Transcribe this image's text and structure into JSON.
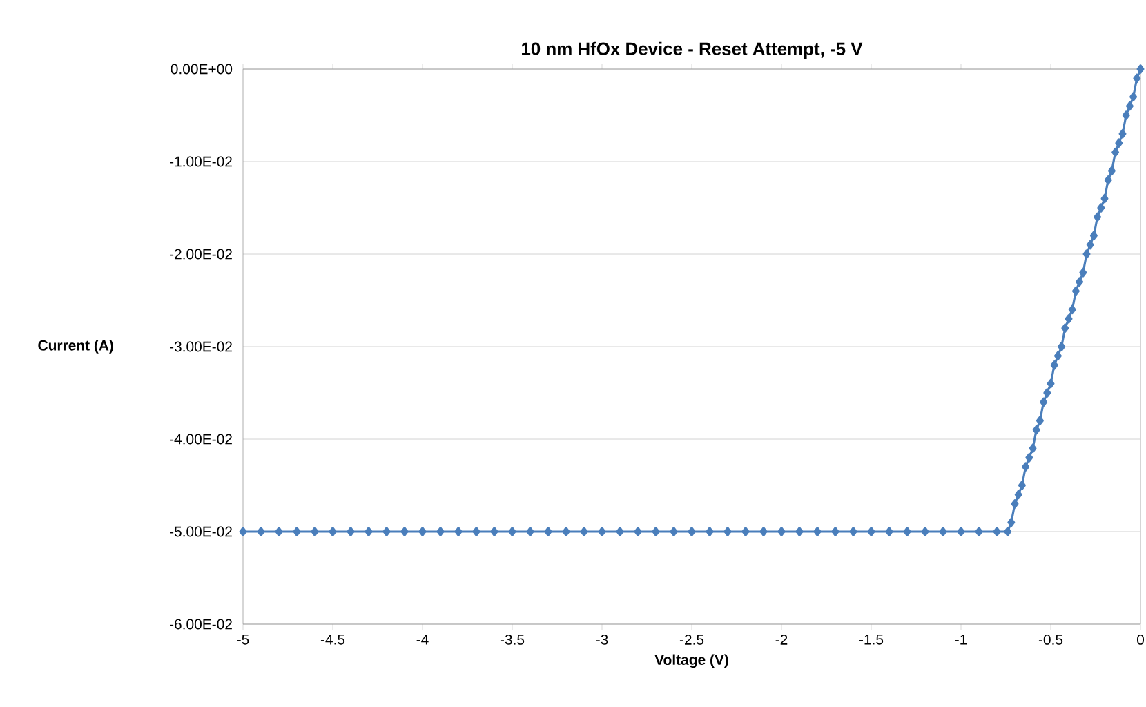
{
  "chart_data": {
    "type": "line",
    "title": "10 nm HfOx Device - Reset Attempt, -5 V",
    "xlabel": "Voltage (V)",
    "ylabel": "Current (A)",
    "x": [
      -5,
      -4.9,
      -4.8,
      -4.7,
      -4.6,
      -4.5,
      -4.4,
      -4.3,
      -4.2,
      -4.1,
      -4,
      -3.9,
      -3.8,
      -3.7,
      -3.6,
      -3.5,
      -3.4,
      -3.3,
      -3.2,
      -3.1,
      -3,
      -2.9,
      -2.8,
      -2.7,
      -2.6,
      -2.5,
      -2.4,
      -2.3,
      -2.2,
      -2.1,
      -2,
      -1.9,
      -1.8,
      -1.7,
      -1.6,
      -1.5,
      -1.4,
      -1.3,
      -1.2,
      -1.1,
      -1,
      -0.9,
      -0.8,
      -0.74,
      -0.72,
      -0.7,
      -0.68,
      -0.66,
      -0.64,
      -0.62,
      -0.6,
      -0.58,
      -0.56,
      -0.54,
      -0.52,
      -0.5,
      -0.48,
      -0.46,
      -0.44,
      -0.42,
      -0.4,
      -0.38,
      -0.36,
      -0.34,
      -0.32,
      -0.3,
      -0.28,
      -0.26,
      -0.24,
      -0.22,
      -0.2,
      -0.18,
      -0.16,
      -0.14,
      -0.12,
      -0.1,
      -0.08,
      -0.06,
      -0.04,
      -0.02,
      0
    ],
    "series": [
      {
        "color": "#4a7ebb",
        "values": [
          -0.05,
          -0.05,
          -0.05,
          -0.05,
          -0.05,
          -0.05,
          -0.05,
          -0.05,
          -0.05,
          -0.05,
          -0.05,
          -0.05,
          -0.05,
          -0.05,
          -0.05,
          -0.05,
          -0.05,
          -0.05,
          -0.05,
          -0.05,
          -0.05,
          -0.05,
          -0.05,
          -0.05,
          -0.05,
          -0.05,
          -0.05,
          -0.05,
          -0.05,
          -0.05,
          -0.05,
          -0.05,
          -0.05,
          -0.05,
          -0.05,
          -0.05,
          -0.05,
          -0.05,
          -0.05,
          -0.05,
          -0.05,
          -0.05,
          -0.05,
          -0.05,
          -0.049,
          -0.047,
          -0.046,
          -0.045,
          -0.043,
          -0.042,
          -0.041,
          -0.039,
          -0.038,
          -0.036,
          -0.035,
          -0.034,
          -0.032,
          -0.031,
          -0.03,
          -0.028,
          -0.027,
          -0.026,
          -0.024,
          -0.023,
          -0.022,
          -0.02,
          -0.019,
          -0.018,
          -0.016,
          -0.015,
          -0.014,
          -0.012,
          -0.011,
          -0.009,
          -0.008,
          -0.007,
          -0.005,
          -0.004,
          -0.003,
          -0.001,
          0
        ]
      }
    ],
    "xlim": [
      -5,
      0
    ],
    "xticks": [
      -5,
      -4.5,
      -4,
      -3.5,
      -3,
      -2.5,
      -2,
      -1.5,
      -1,
      -0.5,
      0
    ],
    "ylim": [
      -0.06,
      0
    ],
    "yticks": [
      {
        "value": -0.06,
        "label": "-6.00E-02"
      },
      {
        "value": -0.05,
        "label": "-5.00E-02"
      },
      {
        "value": -0.04,
        "label": "-4.00E-02"
      },
      {
        "value": -0.03,
        "label": "-3.00E-02"
      },
      {
        "value": -0.02,
        "label": "-2.00E-02"
      },
      {
        "value": -0.01,
        "label": "-1.00E-02"
      },
      {
        "value": 0,
        "label": "0.00E+00"
      }
    ],
    "grid": "y",
    "marker": "diamond",
    "line_style": "solid"
  }
}
